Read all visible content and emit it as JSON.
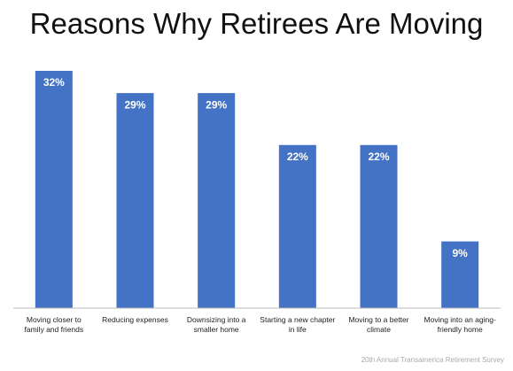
{
  "chart_data": {
    "type": "bar",
    "title": "Reasons Why Retirees Are Moving",
    "categories": [
      "Moving closer to family and friends",
      "Reducing expenses",
      "Downsizing into a smaller home",
      "Starting a new chapter in life",
      "Moving to a better climate",
      "Moving into an aging-friendly home"
    ],
    "values": [
      32,
      29,
      29,
      22,
      22,
      9
    ],
    "value_labels": [
      "32%",
      "29%",
      "29%",
      "22%",
      "22%",
      "9%"
    ],
    "color": "#4472c4",
    "source": "20th Annual Transamerica Retirement Survey"
  }
}
